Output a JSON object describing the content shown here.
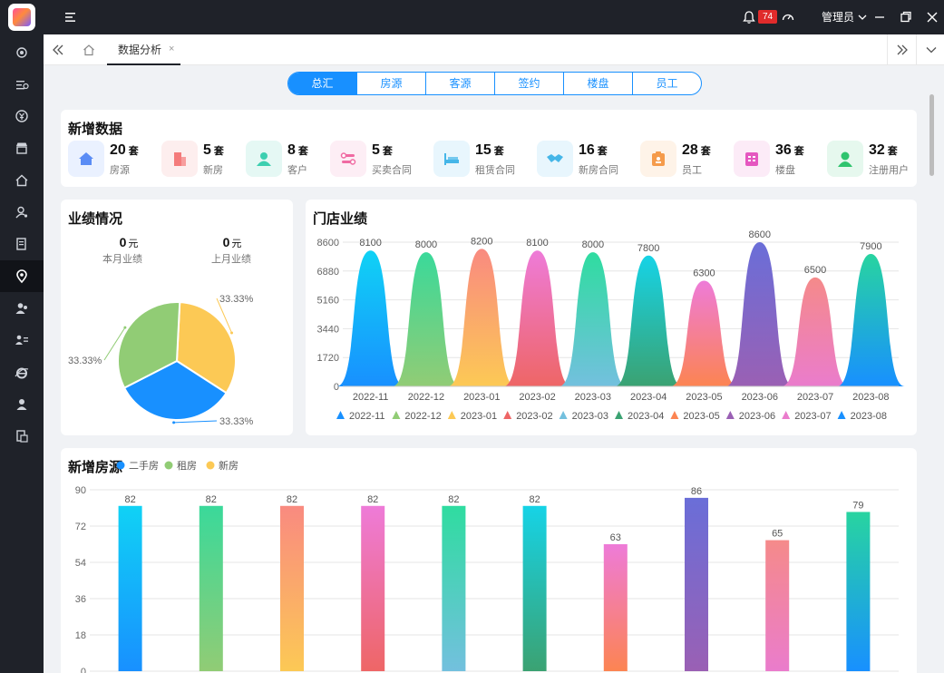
{
  "header": {
    "notification_count": "74",
    "user_name": "管理员"
  },
  "tabs": {
    "active_label": "数据分析",
    "close_glyph": "×"
  },
  "segments": [
    "总汇",
    "房源",
    "客源",
    "签约",
    "楼盘",
    "员工"
  ],
  "sidebar_icons": [
    "settings-icon",
    "list-icon",
    "currency-icon",
    "store-icon",
    "house-icon",
    "user-key-icon",
    "document-icon",
    "location-icon",
    "users-icon",
    "team-icon",
    "ie-icon",
    "person-icon",
    "file-icon"
  ],
  "new_data": {
    "title": "新增数据",
    "items": [
      {
        "value": "20",
        "unit": "套",
        "label": "房源",
        "icon": "house-icon",
        "color": "#5a8cf5",
        "bg": "#eaf1ff"
      },
      {
        "value": "5",
        "unit": "套",
        "label": "新房",
        "icon": "building-icon",
        "color": "#f47b7b",
        "bg": "#fdeeee"
      },
      {
        "value": "8",
        "unit": "套",
        "label": "客户",
        "icon": "customers-icon",
        "color": "#3ccfb0",
        "bg": "#e5f8f4"
      },
      {
        "value": "5",
        "unit": "套",
        "label": "买卖合同",
        "icon": "swap-icon",
        "color": "#f06aa2",
        "bg": "#fdeef5"
      },
      {
        "value": "15",
        "unit": "套",
        "label": "租赁合同",
        "icon": "bed-icon",
        "color": "#45b6e8",
        "bg": "#e8f6fd"
      },
      {
        "value": "16",
        "unit": "套",
        "label": "新房合同",
        "icon": "handshake-icon",
        "color": "#45b6e8",
        "bg": "#e8f6fd"
      },
      {
        "value": "28",
        "unit": "套",
        "label": "员工",
        "icon": "badge-icon",
        "color": "#f59b4b",
        "bg": "#fef3e8"
      },
      {
        "value": "36",
        "unit": "套",
        "label": "楼盘",
        "icon": "buildings-icon",
        "color": "#e557c0",
        "bg": "#fcebf7"
      },
      {
        "value": "32",
        "unit": "套",
        "label": "注册用户",
        "icon": "user-icon",
        "color": "#2fc46e",
        "bg": "#e6f8ee"
      }
    ]
  },
  "performance": {
    "title": "业绩情况",
    "this_month_value": "0",
    "this_month_unit": "元",
    "this_month_label": "本月业绩",
    "last_month_value": "0",
    "last_month_unit": "元",
    "last_month_label": "上月业绩"
  },
  "store": {
    "title": "门店业绩"
  },
  "listings": {
    "title": "新增房源"
  },
  "chart_data": [
    {
      "type": "pie",
      "slices": [
        {
          "value": 33.33,
          "label": "33.33%",
          "color": "#fcc955"
        },
        {
          "value": 33.33,
          "label": "33.33%",
          "color": "#1890ff"
        },
        {
          "value": 33.33,
          "label": "33.33%",
          "color": "#91cc75"
        }
      ]
    },
    {
      "type": "bar",
      "categories": [
        "2022-11",
        "2022-12",
        "2023-01",
        "2023-02",
        "2023-03",
        "2023-04",
        "2023-05",
        "2023-06",
        "2023-07",
        "2023-08"
      ],
      "values": [
        8100,
        8000,
        8200,
        8100,
        8000,
        7800,
        6300,
        8600,
        6500,
        7900
      ],
      "yticks": [
        0,
        1720,
        3440,
        5160,
        6880,
        8600
      ],
      "ylim": [
        0,
        8600
      ],
      "legend": [
        "2022-11",
        "2022-12",
        "2023-01",
        "2023-02",
        "2023-03",
        "2023-04",
        "2023-05",
        "2023-06",
        "2023-07",
        "2023-08"
      ],
      "legend_colors": [
        "#1890ff",
        "#91cc75",
        "#fcc955",
        "#ee6666",
        "#73c0de",
        "#3ba272",
        "#fc8452",
        "#9a60b4",
        "#ea7ccc",
        "#1890ff"
      ],
      "gradients": [
        [
          "#10d2f5",
          "#1890ff"
        ],
        [
          "#3ad99a",
          "#91cc75"
        ],
        [
          "#f98a80",
          "#fcc955"
        ],
        [
          "#ee7bd8",
          "#ee6666"
        ],
        [
          "#2fdca0",
          "#73c0de"
        ],
        [
          "#16d3e6",
          "#3ba272"
        ],
        [
          "#ee7bd8",
          "#fc8452"
        ],
        [
          "#6a6ed8",
          "#9a60b4"
        ],
        [
          "#f58a8a",
          "#ea7ccc"
        ],
        [
          "#28d4a0",
          "#1890ff"
        ]
      ]
    },
    {
      "type": "bar",
      "legend": [
        "二手房",
        "租房",
        "新房"
      ],
      "legend_colors": [
        "#1890ff",
        "#91cc75",
        "#fcc955"
      ],
      "values": [
        82,
        82,
        82,
        82,
        82,
        82,
        63,
        86,
        65,
        79
      ],
      "yticks": [
        0,
        18,
        36,
        54,
        72,
        90
      ],
      "ylim": [
        0,
        90
      ],
      "gradients": [
        [
          "#10d2f5",
          "#1890ff"
        ],
        [
          "#3ad99a",
          "#91cc75"
        ],
        [
          "#f98a80",
          "#fcc955"
        ],
        [
          "#ee7bd8",
          "#ee6666"
        ],
        [
          "#2fdca0",
          "#73c0de"
        ],
        [
          "#16d3e6",
          "#3ba272"
        ],
        [
          "#ee7bd8",
          "#fc8452"
        ],
        [
          "#6a6ed8",
          "#9a60b4"
        ],
        [
          "#f58a8a",
          "#ea7ccc"
        ],
        [
          "#28d4a0",
          "#1890ff"
        ]
      ]
    }
  ]
}
